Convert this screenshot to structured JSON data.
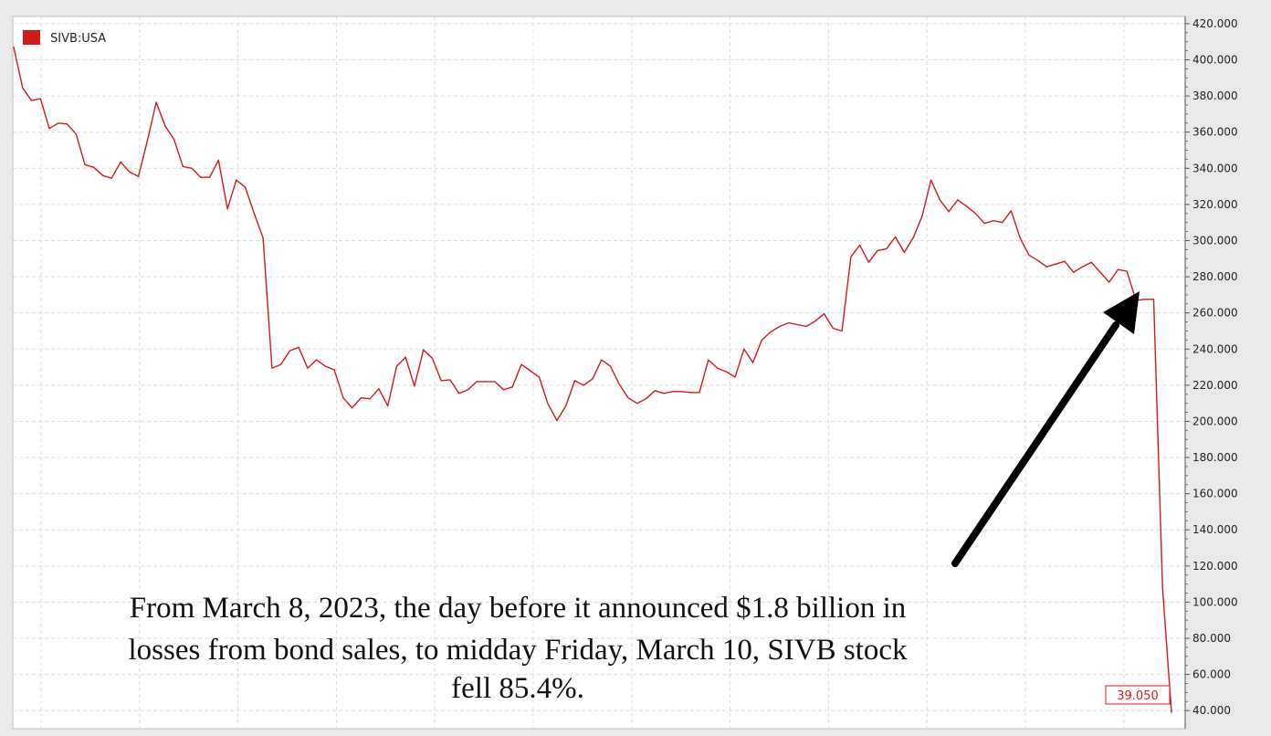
{
  "chart_data": {
    "type": "line",
    "series": [
      {
        "name": "SIVB:USA",
        "color": "#d21a1a",
        "values": [
          407.0,
          384.5,
          377.5,
          378.5,
          362.0,
          365.0,
          364.5,
          359.0,
          342.0,
          340.5,
          336.0,
          334.5,
          343.5,
          338.0,
          335.5,
          355.0,
          376.5,
          363.5,
          356.0,
          341.0,
          340.0,
          335.0,
          335.0,
          344.5,
          317.5,
          333.5,
          329.5,
          315.0,
          301.5,
          229.5,
          231.5,
          239.0,
          241.0,
          229.5,
          234.0,
          230.5,
          228.5,
          213.0,
          207.5,
          213.0,
          212.5,
          218.0,
          208.5,
          230.5,
          235.5,
          219.5,
          239.5,
          235.0,
          222.5,
          223.0,
          215.5,
          217.5,
          222.0,
          222.0,
          222.0,
          217.5,
          219.0,
          231.5,
          228.0,
          224.5,
          209.5,
          200.5,
          208.5,
          222.5,
          220.0,
          223.5,
          234.0,
          230.5,
          220.5,
          213.0,
          210.0,
          212.5,
          217.0,
          215.5,
          216.5,
          216.5,
          216.0,
          216.0,
          234.0,
          229.5,
          227.5,
          224.5,
          240.0,
          232.5,
          245.0,
          249.5,
          252.5,
          254.5,
          253.5,
          252.5,
          255.5,
          259.5,
          251.5,
          250.0,
          291.0,
          297.5,
          288.0,
          294.5,
          295.5,
          302.0,
          293.5,
          301.5,
          313.5,
          333.5,
          322.5,
          316.0,
          322.5,
          319.0,
          315.0,
          309.5,
          311.0,
          310.0,
          316.5,
          301.5,
          292.0,
          289.0,
          285.5,
          287.0,
          288.5,
          282.5,
          285.5,
          288.0,
          282.5,
          277.0,
          284.0,
          283.0,
          267.0,
          267.5,
          267.5,
          108.0,
          39.05
        ]
      }
    ],
    "ylim": [
      30,
      424
    ],
    "yticks": [
      "40.000",
      "60.000",
      "80.000",
      "100.000",
      "120.000",
      "140.000",
      "160.000",
      "180.000",
      "200.000",
      "220.000",
      "240.000",
      "260.000",
      "280.000",
      "300.000",
      "320.000",
      "340.000",
      "360.000",
      "380.000",
      "400.000",
      "420.000"
    ],
    "last_value_label": "39.050",
    "grid": true,
    "legend_position": "top-left",
    "y_axis_side": "right",
    "annotation": {
      "lines": [
        "From March 8, 2023, the day before it announced $1.8 billion in",
        "losses from bond sales, to midday Friday, March 10, SIVB stock",
        "fell 85.4%."
      ],
      "arrow_color": "#000000",
      "arrow_points_to": "March 8 drop"
    }
  }
}
